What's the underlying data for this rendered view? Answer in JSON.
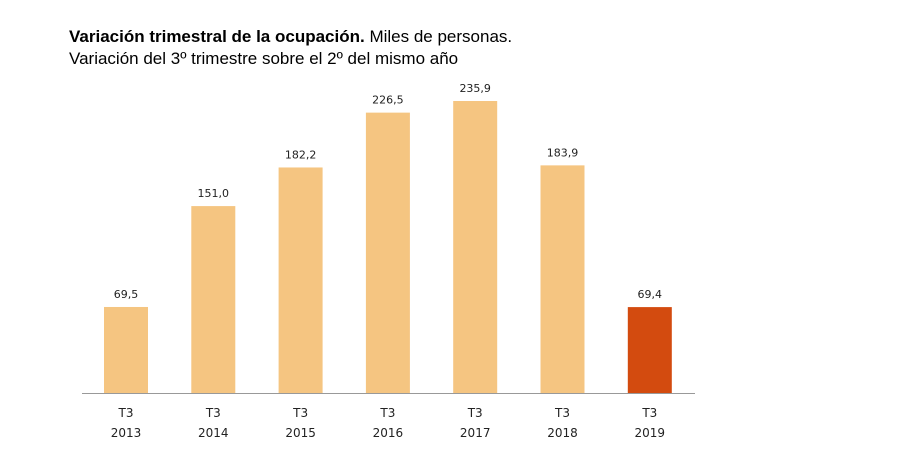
{
  "chart_data": {
    "type": "bar",
    "title_bold": "Variación trimestral de la ocupación.",
    "title_rest": " Miles de personas.",
    "subtitle": "Variación del 3º trimestre sobre el 2º del mismo año",
    "categories": [
      [
        "T3",
        "2013"
      ],
      [
        "T3",
        "2014"
      ],
      [
        "T3",
        "2015"
      ],
      [
        "T3",
        "2016"
      ],
      [
        "T3",
        "2017"
      ],
      [
        "T3",
        "2018"
      ],
      [
        "T3",
        "2019"
      ]
    ],
    "values": [
      69.5,
      151.0,
      182.2,
      226.5,
      235.9,
      183.9,
      69.4
    ],
    "data_labels": [
      "69,5",
      "151,0",
      "182,2",
      "226,5",
      "235,9",
      "183,9",
      "69,4"
    ],
    "highlight_index": 6,
    "ylim": [
      0,
      235.9
    ],
    "grid": false,
    "colors": {
      "bar": "#F5C581",
      "highlight": "#D34B0F",
      "axis": "#999999"
    }
  }
}
